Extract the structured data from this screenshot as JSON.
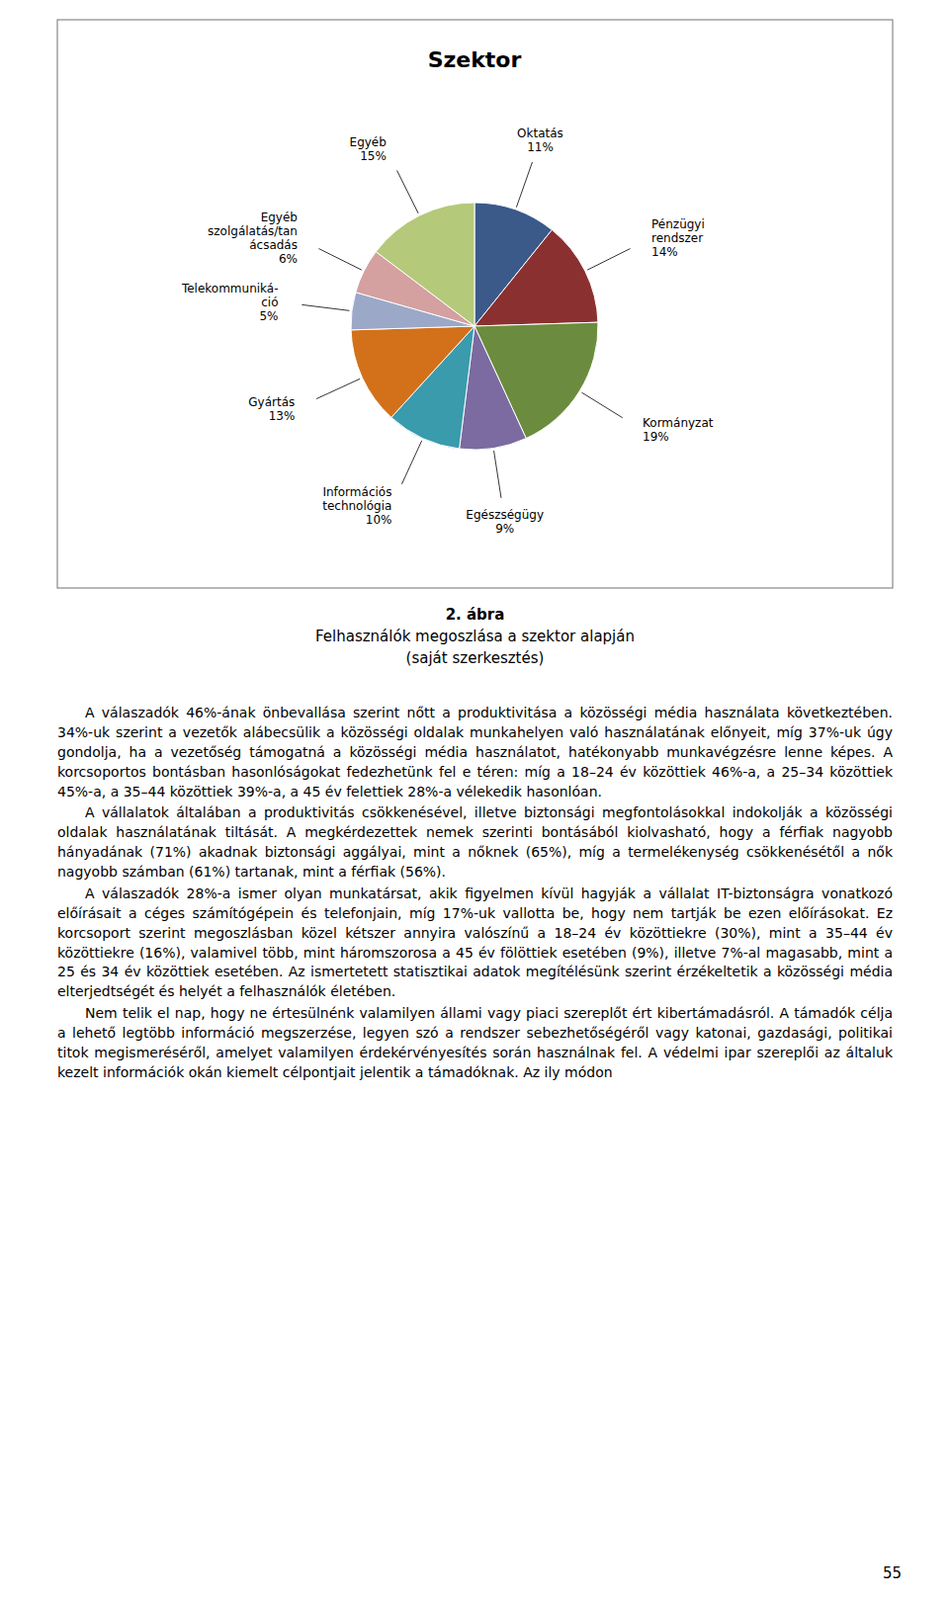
{
  "chart_data": {
    "type": "pie",
    "title": "Szektor",
    "categories": [
      "Oktatás",
      "Pénzügyi\nrendszer",
      "Kormányzat",
      "Egészségügy",
      "Információs\ntechnológia",
      "Gyártás",
      "Telekommuniká-\nció",
      "Egyéb\nszolgálatás/tan\nácsadás",
      "Egyéb"
    ],
    "values": [
      11,
      14,
      19,
      9,
      10,
      13,
      5,
      6,
      15
    ],
    "value_labels": [
      "11%",
      "14%",
      "19%",
      "9%",
      "10%",
      "13%",
      "5%",
      "6%",
      "15%"
    ],
    "colors": [
      "#3B5A8A",
      "#8B3030",
      "#6B8C3E",
      "#7B6BA0",
      "#3A9BAD",
      "#D2711A",
      "#9BA8C8",
      "#D4A0A0",
      "#B5C97A"
    ],
    "data_labels": true
  },
  "caption": [
    "2. ábra",
    "Felhasználók megoszlása a szektor alapján",
    "(saját szerkesztés)"
  ],
  "paragraphs": [
    "A válaszadók 46%-ának önbevallása szerint nőtt a produktivitása a közösségi média használata következtében. 34%-uk szerint a vezetők alábecsülik a közösségi oldalak munkahelyen való használatának előnyeit, míg 37%-uk úgy gondolja, ha a vezetőség támogatná a közösségi média használatot, hatékonyabb munkavégzésre lenne képes. A korcsoportos bontásban hasonlóságokat fedezhetünk fel e téren: míg a 18–24 év közöttiek 46%-a, a 25–34 közöttiek 45%-a, a 35–44 közöttiek 39%-a, a 45 év felettiek 28%-a vélekedik hasonlóan.",
    "A vállalatok általában a produktivitás csökkenésével, illetve biztonsági megfontolásokkal indokolják a közösségi oldalak használatának tiltását. A megkérdezettek nemek szerinti bontásából kiolvasható, hogy a férfiak nagyobb hányadának (71%) akadnak biztonsági aggályai, mint a nőknek (65%), míg a termelékenység csökkenésétől a nők nagyobb számban (61%) tartanak, mint a férfiak (56%).",
    "A válaszadók 28%-a ismer olyan munkatársat, akik figyelmen kívül hagyják a vállalat IT-biztonságra vonatkozó előírásait a céges számítógépein és telefonjain, míg 17%-uk vallotta be, hogy nem tartják be ezen előírásokat. Ez korcsoport szerint megoszlásban közel kétszer annyira valószínű a 18–24 év közöttiekre (30%), mint a 35–44 év közöttiekre (16%), valamivel több, mint háromszorosa a 45 év fölöttiek esetében (9%), illetve 7%-al magasabb, mint a 25 és 34 év közöttiek esetében. Az ismertetett statisztikai adatok megítélésünk szerint érzékeltetik a közösségi média elterjedtségét és helyét a felhasználók életében.",
    "Nem telik el nap, hogy ne értesülnénk valamilyen állami vagy piaci szereplőt ért kibertámadásról. A támadók célja a lehető legtöbb információ megszerzése, legyen szó a rendszer sebezhetőségéről vagy katonai, gazdasági, politikai titok megismeréséről, amelyet valamilyen érdekérvényesítés során használnak fel. A védelmi ipar szereplői az általuk kezelt információk okán kiemelt célpontjait jelentik a támadóknak. Az ily módon"
  ],
  "page_number": "55"
}
